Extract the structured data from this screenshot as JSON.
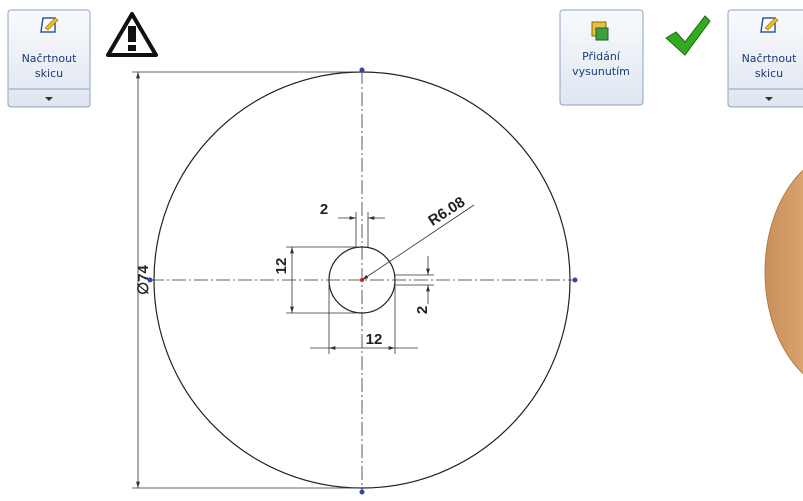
{
  "toolbar": {
    "buttons": [
      {
        "lines": [
          "Načrtnout",
          "skicu"
        ]
      },
      {
        "lines": [
          "Přidání",
          "vysunutím"
        ]
      },
      {
        "lines": [
          "Načrtnout",
          "skicu"
        ]
      }
    ]
  },
  "drawing": {
    "dimensions": [
      {
        "label": "∅74"
      },
      {
        "label": "R6.08"
      },
      {
        "label": "2"
      },
      {
        "label": "12"
      },
      {
        "label": "12"
      },
      {
        "label": "2"
      }
    ]
  }
}
